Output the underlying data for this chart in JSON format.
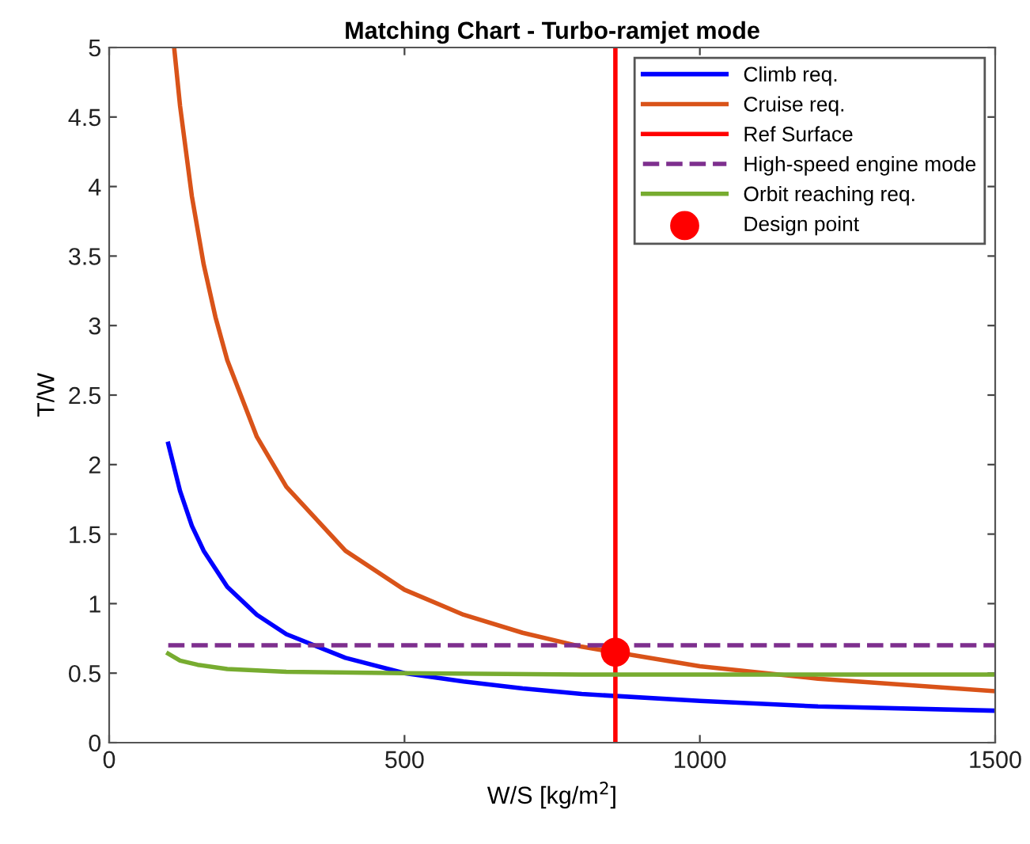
{
  "chart_data": {
    "type": "line",
    "title": "Matching Chart - Turbo-ramjet mode",
    "xlabel": "W/S [kg/m$^{2}$]",
    "ylabel": "T/W",
    "xlim": [
      0,
      1500
    ],
    "xticks": [
      0,
      500,
      1000,
      1500
    ],
    "ylim": [
      0,
      5
    ],
    "yticks": [
      0,
      0.5,
      1,
      1.5,
      2,
      2.5,
      3,
      3.5,
      4,
      4.5,
      5
    ],
    "grid": false,
    "legend": "top right",
    "series": [
      {
        "name": "Climb req.",
        "color": "#0000ff",
        "x": [
          100,
          120,
          140,
          160,
          200,
          250,
          300,
          400,
          500,
          600,
          700,
          800,
          1000,
          1200,
          1500
        ],
        "values": [
          2.15,
          1.81,
          1.56,
          1.38,
          1.12,
          0.92,
          0.78,
          0.61,
          0.5,
          0.44,
          0.39,
          0.35,
          0.3,
          0.26,
          0.23
        ]
      },
      {
        "name": "Cruise req.",
        "color": "#d95319",
        "x": [
          110,
          120,
          140,
          160,
          180,
          200,
          250,
          300,
          400,
          500,
          600,
          700,
          800,
          857,
          1000,
          1200,
          1500
        ],
        "values": [
          5.0,
          4.58,
          3.93,
          3.44,
          3.06,
          2.75,
          2.2,
          1.84,
          1.38,
          1.1,
          0.92,
          0.79,
          0.69,
          0.65,
          0.55,
          0.46,
          0.37
        ]
      },
      {
        "name": "Ref Surface",
        "color": "#ff0000",
        "x": [
          857,
          857
        ],
        "values": [
          0,
          5
        ]
      },
      {
        "name": "High-speed engine mode",
        "color": "#7e2f8e",
        "line_style": "dashed",
        "x": [
          100,
          1500
        ],
        "values": [
          0.7,
          0.7
        ]
      },
      {
        "name": "Orbit reaching req.",
        "color": "#77ac30",
        "x": [
          100,
          120,
          150,
          200,
          300,
          500,
          800,
          1500
        ],
        "values": [
          0.64,
          0.59,
          0.56,
          0.53,
          0.51,
          0.5,
          0.49,
          0.49
        ]
      },
      {
        "name": "Design point",
        "type": "scatter",
        "color": "#ff0000",
        "marker": "circle",
        "x": [
          857
        ],
        "values": [
          0.65
        ]
      }
    ]
  }
}
